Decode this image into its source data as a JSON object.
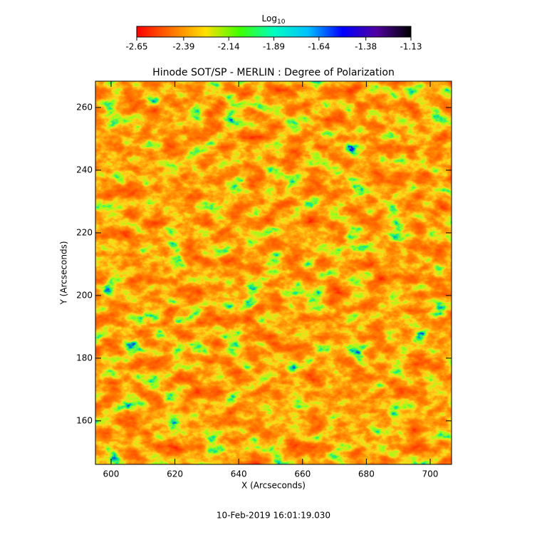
{
  "chart_data": {
    "type": "image",
    "title": "Hinode SOT/SP - MERLIN : Degree of Polarization",
    "x_label": "X (Arcseconds)",
    "y_label": "Y (Arcseconds)",
    "xlim": [
      595.1,
      706.7
    ],
    "ylim": [
      146.1,
      268.4
    ],
    "xticks": [
      600,
      620,
      640,
      660,
      680,
      700
    ],
    "yticks": [
      160,
      180,
      200,
      220,
      240,
      260
    ],
    "colorbar": {
      "label": "Log",
      "label_subscript": "10",
      "clim": [
        -2.65,
        -1.13
      ],
      "ticks": [
        -2.65,
        -2.39,
        -2.14,
        -1.89,
        -1.64,
        -1.38,
        -1.13
      ],
      "colormap": [
        "#ff0000",
        "#ff7000",
        "#ffe000",
        "#40ff00",
        "#00ffc0",
        "#00c0ff",
        "#0000ff",
        "#5000a0",
        "#000000"
      ]
    },
    "footer": "10-Feb-2019 16:01:19.030"
  }
}
